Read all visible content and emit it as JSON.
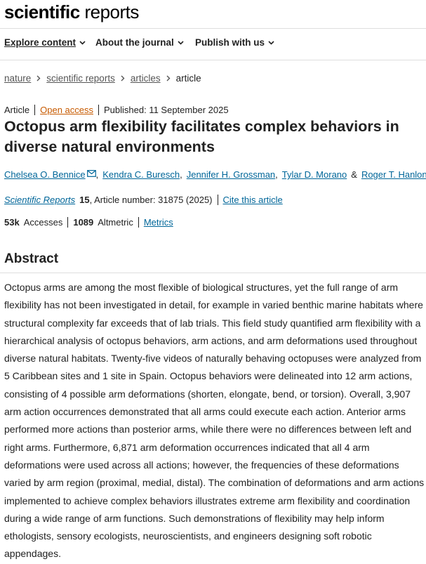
{
  "header": {
    "logo_bold": "scientific",
    "logo_light": "reports"
  },
  "nav": [
    "Explore content",
    "About the journal",
    "Publish with us"
  ],
  "breadcrumb": [
    "nature",
    "scientific reports",
    "articles",
    "article"
  ],
  "meta": {
    "type": "Article",
    "access": "Open access",
    "published": "Published: 11 September 2025"
  },
  "title": "Octopus arm flexibility facilitates complex behaviors in diverse natural environments",
  "authors": [
    {
      "name": "Chelsea O. Bennice",
      "sep": ","
    },
    {
      "name": "Kendra C. Buresch",
      "sep": ","
    },
    {
      "name": "Jennifer H. Grossman",
      "sep": ","
    },
    {
      "name": "Tylar D. Morano",
      "sep": "&"
    },
    {
      "name": "Roger T. Hanlon"
    }
  ],
  "citation": {
    "journal": "Scientific Reports",
    "volume": "15",
    "details": ", Article number: 31875 (2025)",
    "cite": "Cite this article"
  },
  "metrics": {
    "accesses_value": "53k",
    "accesses_label": "Accesses",
    "altmetric_value": "1089",
    "altmetric_label": "Altmetric",
    "link": "Metrics"
  },
  "abstract": {
    "heading": "Abstract",
    "text": "Octopus arms are among the most flexible of biological structures, yet the full range of arm flexibility has not been investigated in detail, for example in varied benthic marine habitats where structural complexity far exceeds that of lab trials. This field study quantified arm flexibility with a hierarchical analysis of octopus behaviors, arm actions, and arm deformations used throughout diverse natural habitats. Twenty-five videos of naturally behaving octopuses were analyzed from 5 Caribbean sites and 1 site in Spain. Octopus behaviors were delineated into 12 arm actions, consisting of 4 possible arm deformations (shorten, elongate, bend, or torsion). Overall, 3,907 arm action occurrences demonstrated that all arms could execute each action. Anterior arms performed more actions than posterior arms, while there were no differences between left and right arms. Furthermore, 6,871 arm deformation occurrences indicated that all 4 arm deformations were used across all actions; however, the frequencies of these deformations varied by arm region (proximal, medial, distal). The combination of deformations and arm actions implemented to achieve complex behaviors illustrates extreme arm flexibility and coordination during a wide range of arm functions. Such demonstrations of flexibility may help inform ethologists, sensory ecologists, neuroscientists, and engineers designing soft robotic appendages."
  }
}
